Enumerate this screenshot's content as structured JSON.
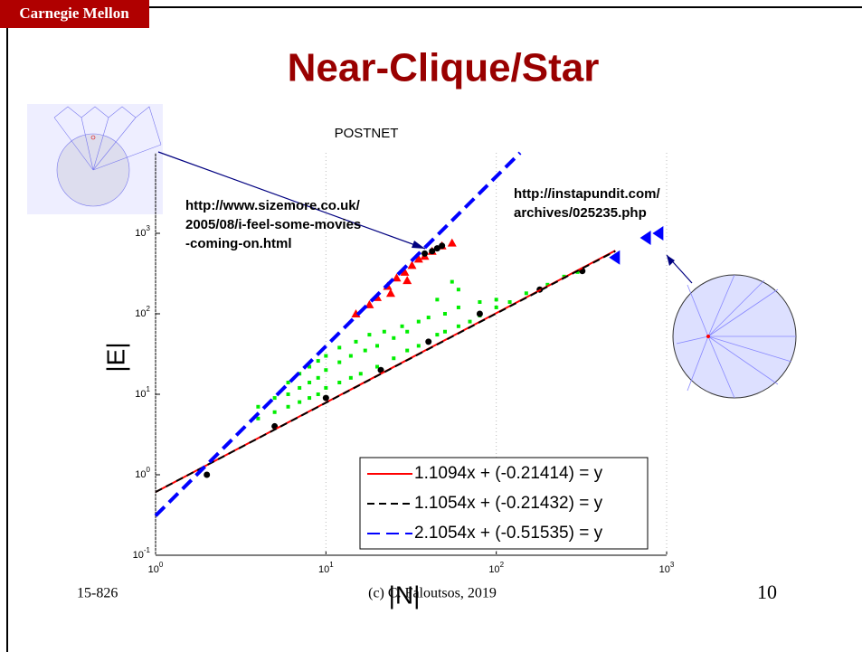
{
  "slide": {
    "logo": "Carnegie Mellon",
    "title": "Near-Clique/Star",
    "footer_left": "15-826",
    "footer_center": "(c) C. Faloutsos, 2019",
    "page_number": "10"
  },
  "chart_data": {
    "type": "scatter",
    "title": "POSTNET",
    "x_label": "|N|",
    "y_label": "|E|",
    "log_x": true,
    "log_y": true,
    "grid": true,
    "legend": "lower right",
    "xlim": [
      1,
      1000
    ],
    "ylim": [
      0.1,
      10000
    ],
    "xticks": [
      {
        "value": 1,
        "label": "10",
        "exp": "0"
      },
      {
        "value": 10,
        "label": "10",
        "exp": "1"
      },
      {
        "value": 100,
        "label": "10",
        "exp": "2"
      },
      {
        "value": 1000,
        "label": "10",
        "exp": "3"
      }
    ],
    "yticks": [
      {
        "value": 0.1,
        "label": "10",
        "exp": "-1"
      },
      {
        "value": 1,
        "label": "10",
        "exp": "0"
      },
      {
        "value": 10,
        "label": "10",
        "exp": "1"
      },
      {
        "value": 100,
        "label": "10",
        "exp": "2"
      },
      {
        "value": 1000,
        "label": "10",
        "exp": "3"
      }
    ],
    "annotations": [
      {
        "lines": [
          "http://www.sizemore.co.uk/",
          "2005/08/i-feel-some-movies",
          "-coming-on.html"
        ]
      },
      {
        "lines": [
          "http://instapundit.com/",
          "archives/025235.php"
        ]
      }
    ],
    "series": [
      {
        "marker": "dot",
        "color": "#00ee00",
        "x": [
          4,
          4,
          5,
          5,
          6,
          6,
          6,
          7,
          7,
          7,
          8,
          8,
          8,
          9,
          9,
          9,
          10,
          10,
          10,
          12,
          12,
          12,
          14,
          14,
          15,
          16,
          17,
          18,
          20,
          20,
          22,
          25,
          25,
          28,
          30,
          30,
          35,
          35,
          40,
          40,
          45,
          50,
          50,
          60,
          60,
          70,
          80,
          80,
          100,
          100,
          120,
          150,
          200,
          250,
          300,
          55,
          60,
          45
        ],
        "values": [
          5,
          7,
          6,
          9,
          7,
          10,
          14,
          8,
          12,
          18,
          9,
          14,
          22,
          10,
          16,
          26,
          12,
          20,
          30,
          14,
          25,
          38,
          16,
          30,
          45,
          18,
          35,
          55,
          22,
          40,
          60,
          28,
          50,
          70,
          35,
          60,
          40,
          80,
          45,
          90,
          55,
          60,
          100,
          70,
          120,
          80,
          95,
          140,
          120,
          150,
          140,
          180,
          230,
          290,
          330,
          250,
          200,
          150
        ]
      },
      {
        "marker": "triangle",
        "color": "#ff0000",
        "x": [
          15,
          18,
          20,
          23,
          24,
          26,
          29,
          30,
          32,
          35,
          38,
          42,
          48,
          55
        ],
        "values": [
          100,
          130,
          160,
          220,
          180,
          280,
          330,
          260,
          400,
          480,
          520,
          600,
          700,
          760
        ]
      },
      {
        "marker": "circle",
        "color": "#000000",
        "x": [
          2,
          5,
          10,
          21,
          40,
          80,
          180,
          320,
          38,
          42,
          45,
          48
        ],
        "values": [
          1,
          4,
          9,
          20,
          45,
          100,
          200,
          340,
          560,
          600,
          650,
          700
        ]
      },
      {
        "marker": "triangle-left",
        "color": "#0000ff",
        "x": [
          500,
          760,
          900
        ],
        "values": [
          500,
          880,
          1000
        ]
      },
      {
        "name": "1.1094x + (-0.21414) = y",
        "marker": "line",
        "color": "#ff0000",
        "dash": "none",
        "x": [
          1,
          500
        ],
        "values": [
          0.61,
          610
        ]
      },
      {
        "name": "1.1054x + (-0.21432) = y",
        "marker": "line",
        "color": "#000000",
        "dash": "8 5",
        "x": [
          1,
          500
        ],
        "values": [
          0.61,
          600
        ]
      },
      {
        "name": "2.1054x + (-0.51535) = y",
        "marker": "line",
        "color": "#0000ff",
        "dash": "14 7",
        "x": [
          1,
          138
        ],
        "values": [
          0.31,
          10000
        ]
      }
    ]
  }
}
